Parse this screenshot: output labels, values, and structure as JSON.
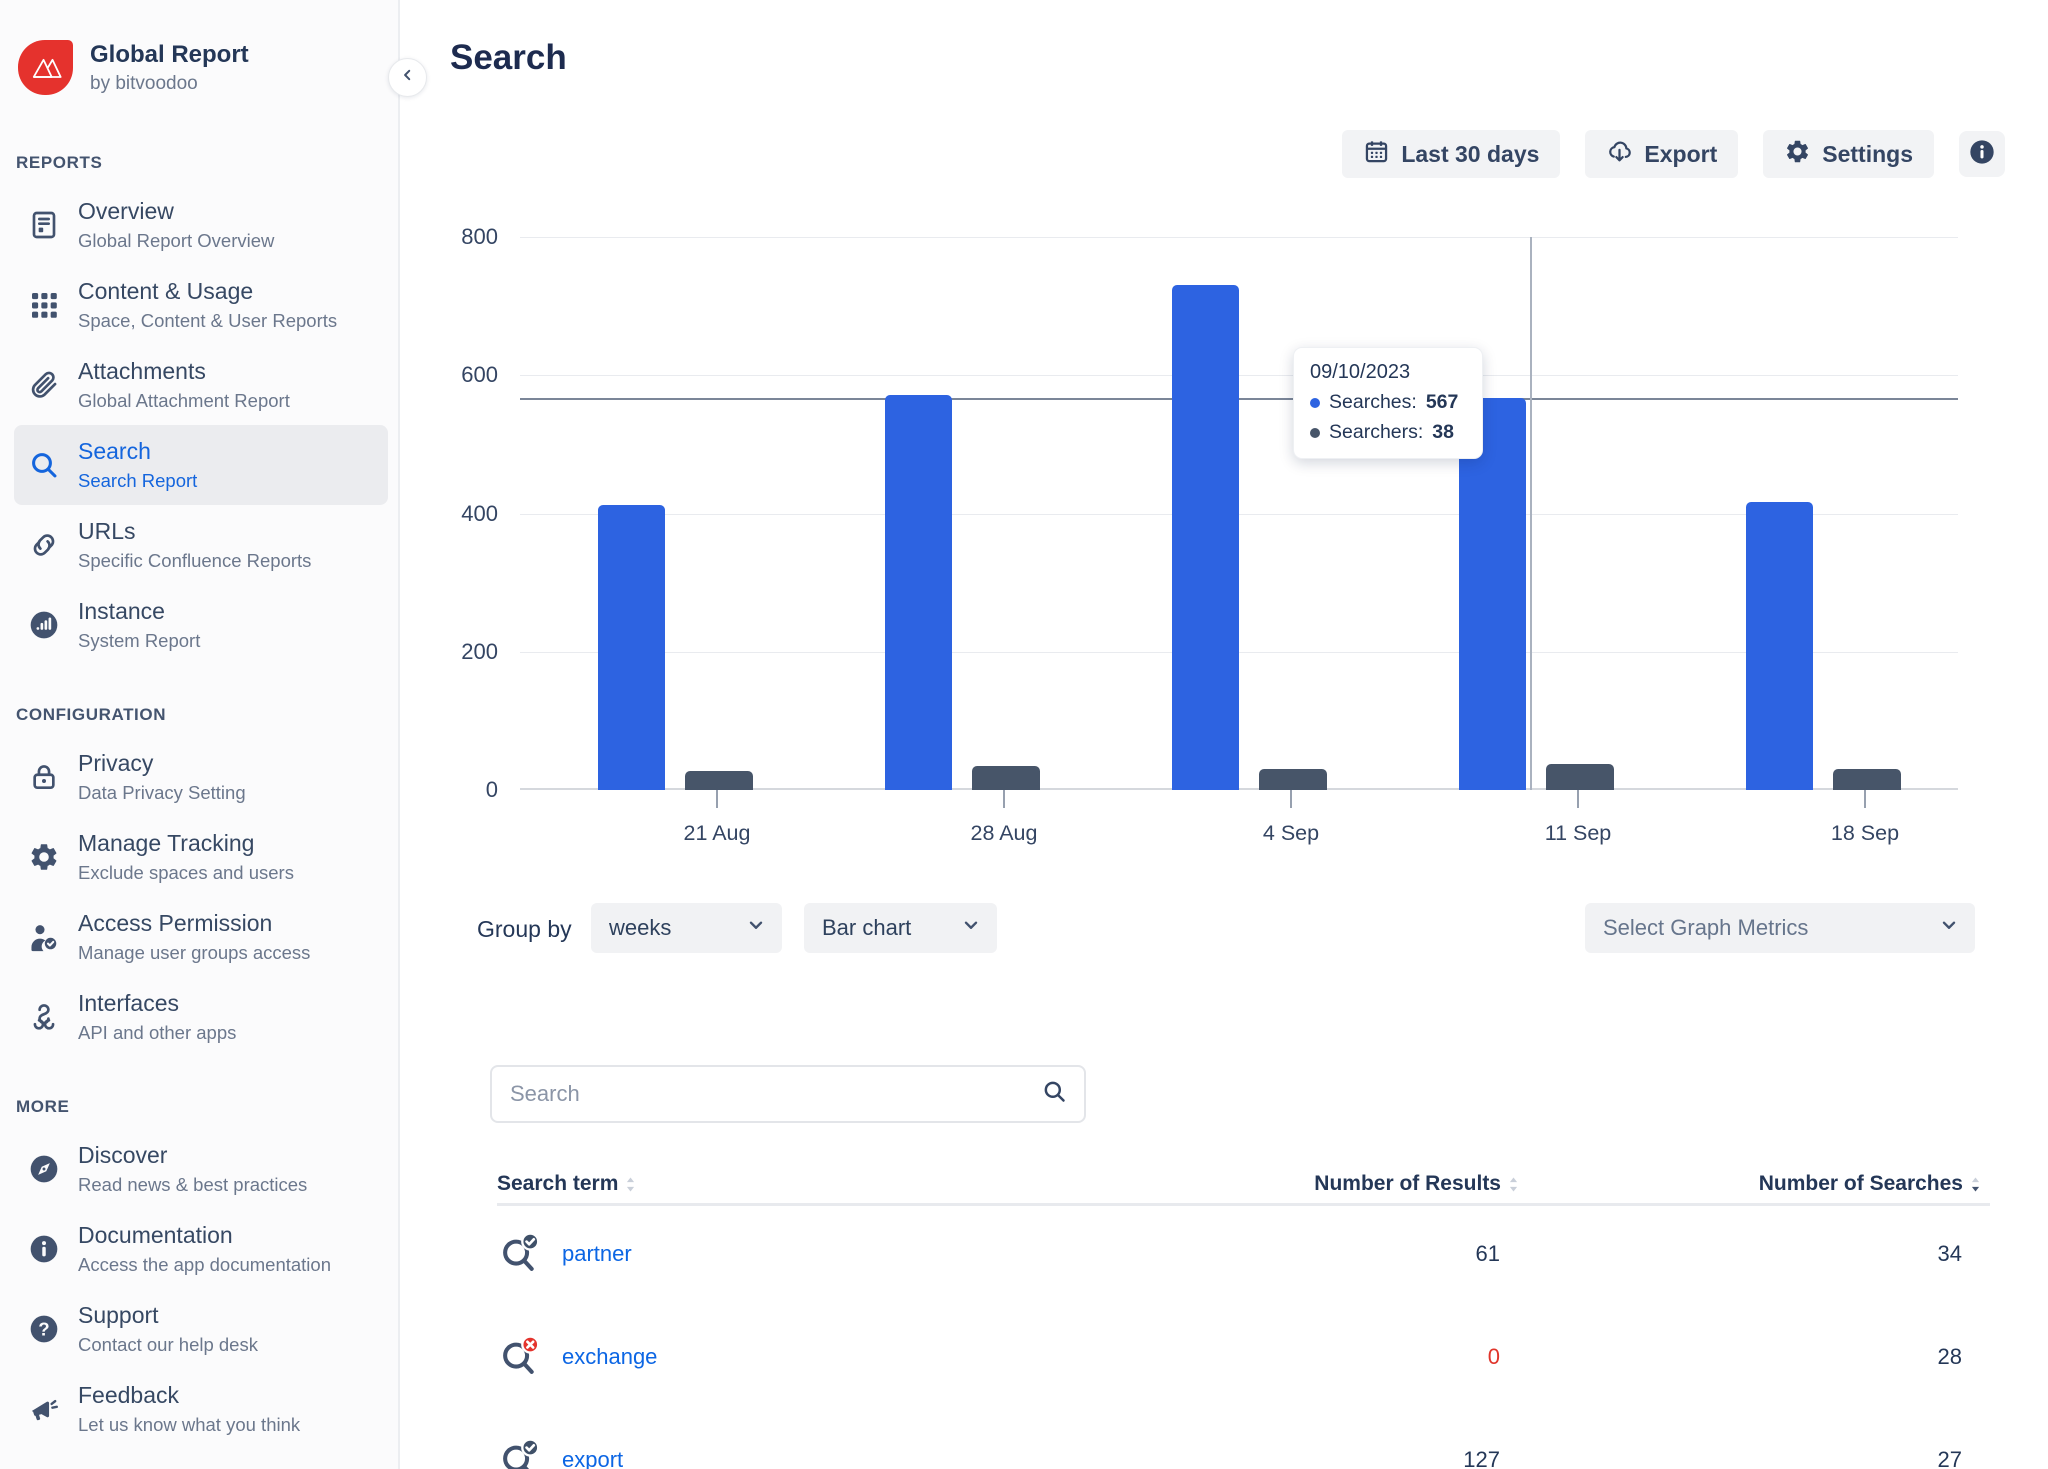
{
  "app": {
    "name": "Global Report",
    "byline": "by bitvoodoo"
  },
  "page": {
    "title": "Search"
  },
  "toolbar": {
    "date_range": "Last 30 days",
    "export": "Export",
    "settings": "Settings"
  },
  "sidebar": {
    "sections": [
      {
        "label": "REPORTS",
        "items": [
          {
            "icon": "document-icon",
            "title": "Overview",
            "subtitle": "Global Report Overview",
            "selected": false
          },
          {
            "icon": "grid-icon",
            "title": "Content & Usage",
            "subtitle": "Space, Content & User Reports",
            "selected": false
          },
          {
            "icon": "paperclip-icon",
            "title": "Attachments",
            "subtitle": "Global Attachment Report",
            "selected": false
          },
          {
            "icon": "search-icon",
            "title": "Search",
            "subtitle": "Search Report",
            "selected": true
          },
          {
            "icon": "link-icon",
            "title": "URLs",
            "subtitle": "Specific Confluence Reports",
            "selected": false
          },
          {
            "icon": "instance-icon",
            "title": "Instance",
            "subtitle": "System Report",
            "selected": false
          }
        ]
      },
      {
        "label": "CONFIGURATION",
        "items": [
          {
            "icon": "lock-icon",
            "title": "Privacy",
            "subtitle": "Data Privacy Setting",
            "selected": false
          },
          {
            "icon": "gear-icon",
            "title": "Manage Tracking",
            "subtitle": "Exclude spaces and users",
            "selected": false
          },
          {
            "icon": "user-check-icon",
            "title": "Access Permission",
            "subtitle": "Manage user groups access",
            "selected": false
          },
          {
            "icon": "interfaces-icon",
            "title": "Interfaces",
            "subtitle": "API and other apps",
            "selected": false
          }
        ]
      },
      {
        "label": "MORE",
        "items": [
          {
            "icon": "compass-icon",
            "title": "Discover",
            "subtitle": "Read news & best practices",
            "selected": false
          },
          {
            "icon": "info-icon",
            "title": "Documentation",
            "subtitle": "Access the app documentation",
            "selected": false
          },
          {
            "icon": "question-icon",
            "title": "Support",
            "subtitle": "Contact our help desk",
            "selected": false
          },
          {
            "icon": "megaphone-icon",
            "title": "Feedback",
            "subtitle": "Let us know what you think",
            "selected": false
          }
        ]
      }
    ]
  },
  "chart_data": {
    "type": "bar",
    "categories": [
      "21 Aug",
      "28 Aug",
      "4 Sep",
      "11 Sep",
      "18 Sep"
    ],
    "series": [
      {
        "name": "Searches",
        "color": "#2d63e1",
        "values": [
          412,
          572,
          731,
          567,
          417
        ]
      },
      {
        "name": "Searchers",
        "color": "#475569",
        "values": [
          28,
          34,
          30,
          38,
          30
        ]
      }
    ],
    "ylim": [
      0,
      800
    ],
    "yticks": [
      0,
      200,
      400,
      600,
      800
    ],
    "grid": true,
    "legend_position": "none",
    "tooltip": {
      "date": "09/10/2023",
      "lines": [
        {
          "label": "Searches:",
          "value": "567",
          "color": "#2d63e1"
        },
        {
          "label": "Searchers:",
          "value": "38",
          "color": "#475569"
        }
      ],
      "crosshair": {
        "x_category": "11 Sep",
        "y_value": 567
      }
    }
  },
  "chart_controls": {
    "group_by_label": "Group by",
    "group_by_value": "weeks",
    "chart_type_value": "Bar chart",
    "metrics_placeholder": "Select Graph Metrics"
  },
  "search": {
    "placeholder": "Search"
  },
  "table": {
    "columns": [
      {
        "label": "Search term",
        "sort": "unsorted"
      },
      {
        "label": "Number of Results",
        "sort": "unsorted"
      },
      {
        "label": "Number of Searches",
        "sort": "desc"
      }
    ],
    "rows": [
      {
        "term": "partner",
        "status": "success",
        "results": "61",
        "results_red": false,
        "searches": "34"
      },
      {
        "term": "exchange",
        "status": "error",
        "results": "0",
        "results_red": true,
        "searches": "28"
      },
      {
        "term": "export",
        "status": "success",
        "results": "127",
        "results_red": false,
        "searches": "27"
      }
    ]
  },
  "colors": {
    "brand_red": "#e5322d",
    "accent_blue": "#1465dd",
    "bar_blue": "#2d63e1",
    "bar_slate": "#475569",
    "link_blue": "#0c66e4",
    "error_red": "#e0352b",
    "text_dark": "#243757",
    "text_muted": "#6b778c",
    "button_bg": "#f2f3f5"
  }
}
